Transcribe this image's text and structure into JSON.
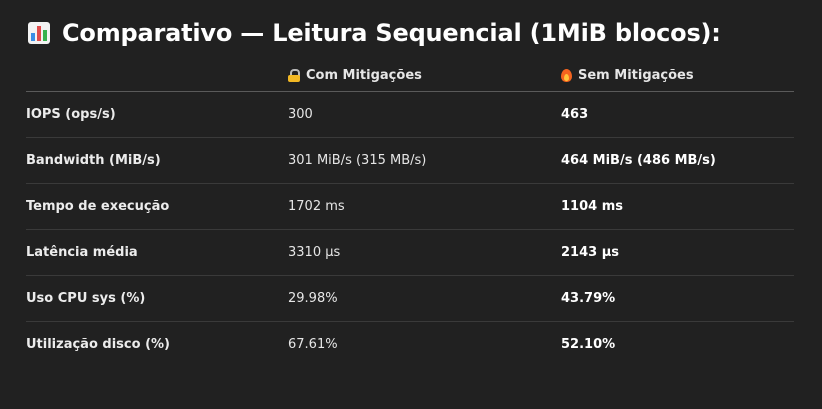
{
  "title": "Comparativo — Leitura Sequencial (1MiB blocos):",
  "title_icon": "bar-chart-icon",
  "table": {
    "headers": [
      {
        "label": "",
        "icon": ""
      },
      {
        "label": "Com Mitigações",
        "icon": "lock-icon"
      },
      {
        "label": "Sem Mitigações",
        "icon": "fire-icon"
      }
    ],
    "rows": [
      {
        "metric": "IOPS (ops/s)",
        "com": "300",
        "sem": "463"
      },
      {
        "metric": "Bandwidth (MiB/s)",
        "com": "301 MiB/s (315 MB/s)",
        "sem": "464 MiB/s (486 MB/s)"
      },
      {
        "metric": "Tempo de execução",
        "com": "1702 ms",
        "sem": "1104 ms"
      },
      {
        "metric": "Latência média",
        "com": "3310 µs",
        "sem": "2143 µs"
      },
      {
        "metric": "Uso CPU sys (%)",
        "com": "29.98%",
        "sem": "43.79%"
      },
      {
        "metric": "Utilização disco (%)",
        "com": "67.61%",
        "sem": "52.10%"
      }
    ]
  },
  "colors": {
    "background": "#212121",
    "text": "#ececec",
    "divider": "#3a3a3a"
  }
}
